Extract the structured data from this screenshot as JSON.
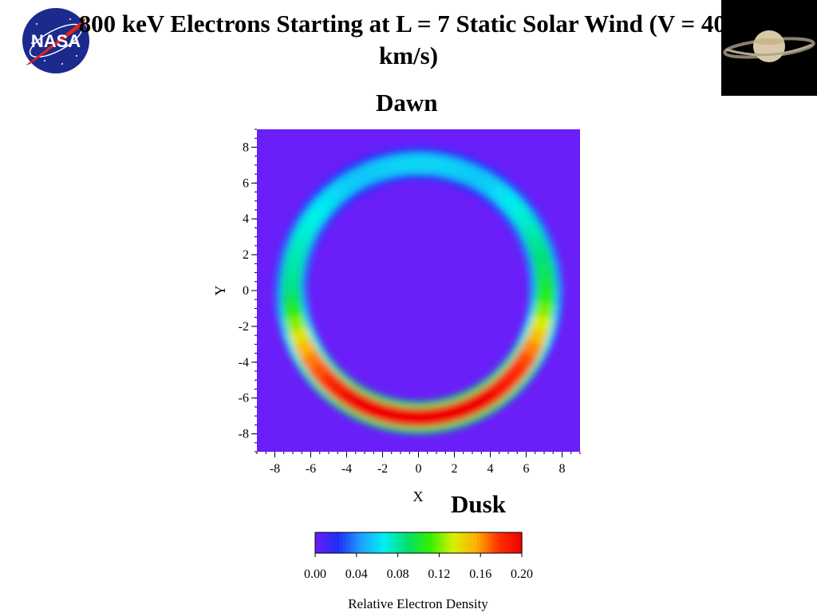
{
  "page": {
    "title": "800 keV Electrons Starting at L = 7 Static Solar Wind (V = 400 km/s)",
    "dawn_label": "Dawn",
    "dusk_label": "Dusk",
    "logo_text": "NASA"
  },
  "chart_data": {
    "type": "heatmap",
    "title": "800 keV Electrons Starting at L = 7 Static Solar Wind (V = 400 km/s)",
    "xlabel": "X",
    "ylabel": "Y",
    "xlim": [
      -9,
      9
    ],
    "ylim": [
      -9,
      9
    ],
    "xticks": [
      -8,
      -6,
      -4,
      -2,
      0,
      2,
      4,
      6,
      8
    ],
    "yticks": [
      -8,
      -6,
      -4,
      -2,
      0,
      2,
      4,
      6,
      8
    ],
    "background_color": "#6a1ef8",
    "colorbar": {
      "label": "Relative Electron Density",
      "range": [
        0.0,
        0.2
      ],
      "ticks": [
        "0.00",
        "0.04",
        "0.08",
        "0.12",
        "0.16",
        "0.20"
      ],
      "colors": [
        "#6a1ef8",
        "#1e2ef8",
        "#1ea0ff",
        "#00f0f0",
        "#00e070",
        "#30f000",
        "#d8f000",
        "#ffb000",
        "#ff3000",
        "#f00000"
      ]
    },
    "ring": {
      "center": [
        0,
        0
      ],
      "inner_radius": 6.2,
      "outer_radius": 8.0
    },
    "density_by_angle_deg": [
      {
        "angle": 0,
        "value": 0.1
      },
      {
        "angle": 30,
        "value": 0.075
      },
      {
        "angle": 60,
        "value": 0.055
      },
      {
        "angle": 90,
        "value": 0.06
      },
      {
        "angle": 120,
        "value": 0.055
      },
      {
        "angle": 150,
        "value": 0.07
      },
      {
        "angle": 180,
        "value": 0.085
      },
      {
        "angle": 210,
        "value": 0.16
      },
      {
        "angle": 240,
        "value": 0.2
      },
      {
        "angle": 270,
        "value": 0.2
      },
      {
        "angle": 300,
        "value": 0.2
      },
      {
        "angle": 330,
        "value": 0.17
      },
      {
        "angle": 360,
        "value": 0.1
      }
    ]
  }
}
